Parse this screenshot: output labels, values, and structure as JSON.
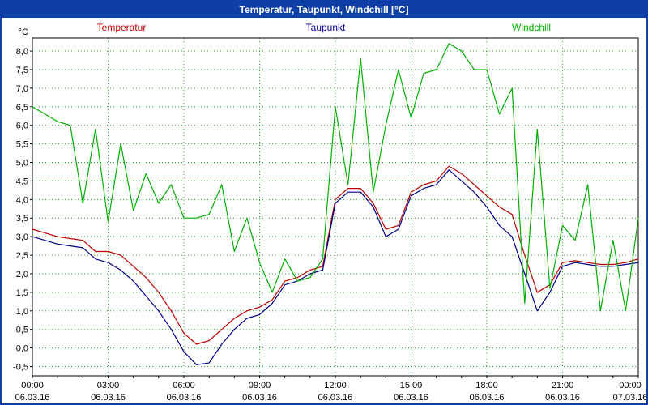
{
  "window": {
    "title": "Temperatur, Taupunkt, Windchill [°C]"
  },
  "chart_data": {
    "type": "line",
    "title": "Temperatur, Taupunkt, Windchill [°C]",
    "ylabel_unit": "°C",
    "ylim": [
      -0.75,
      8.35
    ],
    "grid": true,
    "grid_color": "#21a121",
    "axis_color": "#000000",
    "background": "#ffffff",
    "legend_position": "top",
    "x_hours": [
      0,
      0.5,
      1,
      1.5,
      2,
      2.5,
      3,
      3.5,
      4,
      4.5,
      5,
      5.5,
      6,
      6.5,
      7,
      7.5,
      8,
      8.5,
      9,
      9.5,
      10,
      10.5,
      11,
      11.5,
      12,
      12.5,
      13,
      13.5,
      14,
      14.5,
      15,
      15.5,
      16,
      16.5,
      17,
      17.5,
      18,
      18.5,
      19,
      19.5,
      20,
      20.5,
      21,
      21.5,
      22,
      22.5,
      23,
      23.5,
      24
    ],
    "yticks": [
      {
        "v": -0.5,
        "label": "-0,5"
      },
      {
        "v": 0.0,
        "label": "0,0"
      },
      {
        "v": 0.5,
        "label": "0,5"
      },
      {
        "v": 1.0,
        "label": "1,0"
      },
      {
        "v": 1.5,
        "label": "1,5"
      },
      {
        "v": 2.0,
        "label": "2,0"
      },
      {
        "v": 2.5,
        "label": "2,5"
      },
      {
        "v": 3.0,
        "label": "3,0"
      },
      {
        "v": 3.5,
        "label": "3,5"
      },
      {
        "v": 4.0,
        "label": "4,0"
      },
      {
        "v": 4.5,
        "label": "4,5"
      },
      {
        "v": 5.0,
        "label": "5,0"
      },
      {
        "v": 5.5,
        "label": "5,5"
      },
      {
        "v": 6.0,
        "label": "6,0"
      },
      {
        "v": 6.5,
        "label": "6,5"
      },
      {
        "v": 7.0,
        "label": "7,0"
      },
      {
        "v": 7.5,
        "label": "7,5"
      },
      {
        "v": 8.0,
        "label": "8,0"
      }
    ],
    "xticks": [
      {
        "h": 0,
        "time": "00:00",
        "date": "06.03.16"
      },
      {
        "h": 3,
        "time": "03:00",
        "date": "06.03.16"
      },
      {
        "h": 6,
        "time": "06:00",
        "date": "06.03.16"
      },
      {
        "h": 9,
        "time": "09:00",
        "date": "06.03.16"
      },
      {
        "h": 12,
        "time": "12:00",
        "date": "06.03.16"
      },
      {
        "h": 15,
        "time": "15:00",
        "date": "06.03.16"
      },
      {
        "h": 18,
        "time": "18:00",
        "date": "06.03.16"
      },
      {
        "h": 21,
        "time": "21:00",
        "date": "06.03.16"
      },
      {
        "h": 24,
        "time": "00:00",
        "date": "07.03.16"
      }
    ],
    "series": [
      {
        "name": "Temperatur",
        "color": "#c00000",
        "values": [
          3.2,
          3.1,
          3.0,
          2.95,
          2.9,
          2.6,
          2.6,
          2.5,
          2.2,
          1.9,
          1.5,
          1.0,
          0.4,
          0.1,
          0.2,
          0.5,
          0.8,
          1.0,
          1.1,
          1.3,
          1.8,
          1.9,
          2.1,
          2.2,
          4.0,
          4.3,
          4.3,
          3.9,
          3.2,
          3.3,
          4.2,
          4.4,
          4.5,
          4.9,
          4.7,
          4.4,
          4.1,
          3.8,
          3.6,
          2.5,
          1.5,
          1.7,
          2.3,
          2.35,
          2.3,
          2.25,
          2.25,
          2.3,
          2.4
        ]
      },
      {
        "name": "Taupunkt",
        "color": "#00008b",
        "values": [
          3.0,
          2.9,
          2.8,
          2.75,
          2.7,
          2.4,
          2.3,
          2.1,
          1.8,
          1.4,
          1.0,
          0.5,
          -0.1,
          -0.45,
          -0.4,
          0.1,
          0.5,
          0.8,
          0.9,
          1.2,
          1.7,
          1.8,
          2.0,
          2.1,
          3.9,
          4.2,
          4.2,
          3.8,
          3.0,
          3.2,
          4.1,
          4.3,
          4.4,
          4.8,
          4.5,
          4.2,
          3.8,
          3.3,
          3.0,
          2.0,
          1.0,
          1.5,
          2.2,
          2.3,
          2.25,
          2.2,
          2.2,
          2.25,
          2.3
        ]
      },
      {
        "name": "Windchill",
        "color": "#00b000",
        "values": [
          6.5,
          6.3,
          6.1,
          6.0,
          3.9,
          5.9,
          3.4,
          5.5,
          3.7,
          4.7,
          3.9,
          4.4,
          3.5,
          3.5,
          3.6,
          4.4,
          2.6,
          3.5,
          2.3,
          1.5,
          2.4,
          1.8,
          1.9,
          2.4,
          6.5,
          4.4,
          7.8,
          4.2,
          6.0,
          7.5,
          6.2,
          7.4,
          7.5,
          8.2,
          8.0,
          7.5,
          7.5,
          6.3,
          7.0,
          1.2,
          5.9,
          1.6,
          3.3,
          2.9,
          4.4,
          1.0,
          2.9,
          1.0,
          3.5
        ]
      }
    ]
  }
}
